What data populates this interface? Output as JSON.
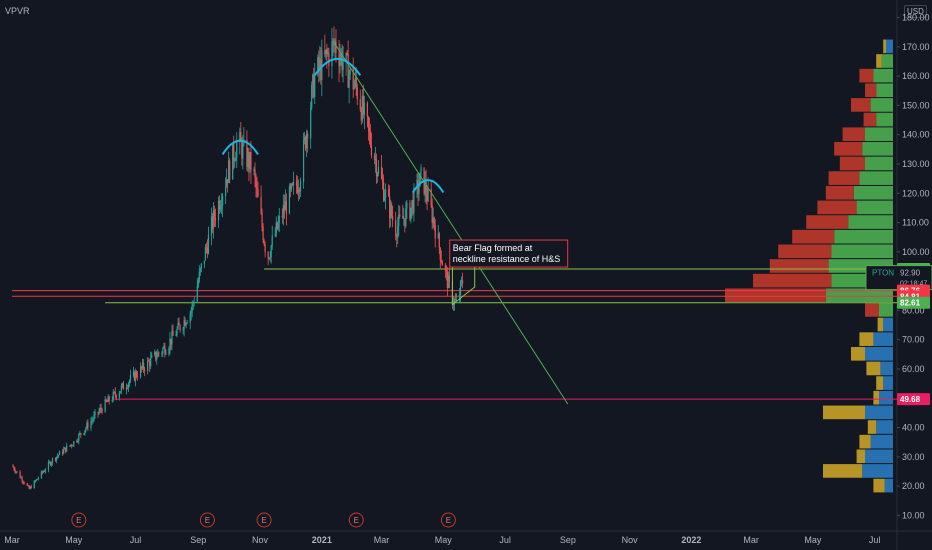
{
  "header": {
    "ticker": "VPVR",
    "currency": "USD"
  },
  "chart_data": {
    "type": "candlestick",
    "ylim": [
      5,
      186
    ],
    "xlim": [
      "2020-03-01",
      "2022-07-31"
    ],
    "y_ticks": [
      10,
      20,
      30,
      40,
      50,
      60,
      70,
      80,
      90,
      100,
      110,
      120,
      130,
      140,
      150,
      160,
      170,
      180
    ],
    "x_ticks": [
      {
        "date": "2020-03-01",
        "label": "Mar"
      },
      {
        "date": "2020-05-01",
        "label": "May"
      },
      {
        "date": "2020-07-01",
        "label": "Jul"
      },
      {
        "date": "2020-09-01",
        "label": "Sep"
      },
      {
        "date": "2020-11-01",
        "label": "Nov"
      },
      {
        "date": "2021-01-01",
        "label": "2021"
      },
      {
        "date": "2021-03-01",
        "label": "Mar"
      },
      {
        "date": "2021-05-01",
        "label": "May"
      },
      {
        "date": "2021-07-01",
        "label": "Jul"
      },
      {
        "date": "2021-09-01",
        "label": "Sep"
      },
      {
        "date": "2021-11-01",
        "label": "Nov"
      },
      {
        "date": "2022-01-01",
        "label": "2022"
      },
      {
        "date": "2022-03-01",
        "label": "Mar"
      },
      {
        "date": "2022-05-01",
        "label": "May"
      },
      {
        "date": "2022-07-01",
        "label": "Jul"
      }
    ],
    "price_path": [
      {
        "date": "2020-03-01",
        "price": 27
      },
      {
        "date": "2020-03-18",
        "price": 19
      },
      {
        "date": "2020-04-10",
        "price": 29
      },
      {
        "date": "2020-05-01",
        "price": 35
      },
      {
        "date": "2020-06-01",
        "price": 48
      },
      {
        "date": "2020-07-01",
        "price": 58
      },
      {
        "date": "2020-08-01",
        "price": 68
      },
      {
        "date": "2020-08-25",
        "price": 80
      },
      {
        "date": "2020-09-15",
        "price": 110
      },
      {
        "date": "2020-10-10",
        "price": 138
      },
      {
        "date": "2020-10-25",
        "price": 128
      },
      {
        "date": "2020-11-08",
        "price": 98
      },
      {
        "date": "2020-11-25",
        "price": 115
      },
      {
        "date": "2020-12-10",
        "price": 125
      },
      {
        "date": "2020-12-25",
        "price": 160
      },
      {
        "date": "2021-01-14",
        "price": 171
      },
      {
        "date": "2021-02-05",
        "price": 155
      },
      {
        "date": "2021-02-28",
        "price": 125
      },
      {
        "date": "2021-03-15",
        "price": 108
      },
      {
        "date": "2021-03-30",
        "price": 115
      },
      {
        "date": "2021-04-10",
        "price": 126
      },
      {
        "date": "2021-04-22",
        "price": 110
      },
      {
        "date": "2021-05-01",
        "price": 95
      },
      {
        "date": "2021-05-10",
        "price": 84
      },
      {
        "date": "2021-05-14",
        "price": 82
      },
      {
        "date": "2021-05-20",
        "price": 90
      }
    ],
    "earnings_markers": [
      {
        "date": "2020-05-06",
        "label": "E"
      },
      {
        "date": "2020-09-10",
        "label": "E"
      },
      {
        "date": "2020-11-05",
        "label": "E"
      },
      {
        "date": "2021-02-04",
        "label": "E"
      },
      {
        "date": "2021-05-06",
        "label": "E"
      }
    ],
    "horizontal_lines": [
      {
        "price": 94.12,
        "color": "#8bc34a",
        "from": "2020-11-05"
      },
      {
        "price": 86.76,
        "color": "#f23645",
        "from": "2020-03-01"
      },
      {
        "price": 84.81,
        "color": "#f23645",
        "from": "2020-03-01"
      },
      {
        "price": 82.61,
        "color": "#8bc34a",
        "from": "2020-06-01"
      },
      {
        "price": 49.68,
        "color": "#e91e63",
        "from": "2020-06-10"
      }
    ],
    "trendline": {
      "from": {
        "date": "2021-01-14",
        "price": 171
      },
      "to": {
        "date": "2021-09-01",
        "price": 48
      },
      "color": "#4caf50"
    },
    "flag": [
      {
        "date": "2021-05-10",
        "price": 95
      },
      {
        "date": "2021-06-01",
        "price": 98
      },
      {
        "date": "2021-06-01",
        "price": 88
      },
      {
        "date": "2021-05-10",
        "price": 82
      }
    ],
    "arcs": [
      {
        "from": "2020-09-25",
        "to": "2020-10-30",
        "price": 136
      },
      {
        "from": "2020-12-25",
        "to": "2021-02-08",
        "price": 163
      },
      {
        "from": "2021-04-01",
        "to": "2021-05-01",
        "price": 123
      }
    ],
    "annotation": {
      "text_lines": [
        "Bear Flag formed at",
        "neckline resistance of H&S"
      ],
      "date": "2021-06-01",
      "price": 103
    },
    "volume_profile": [
      {
        "price": 170,
        "up": 0.05,
        "down": 0.02,
        "color": "blue"
      },
      {
        "price": 165,
        "up": 0.08,
        "down": 0.04,
        "color": "gold"
      },
      {
        "price": 160,
        "up": 0.14,
        "down": 0.1
      },
      {
        "price": 155,
        "up": 0.12,
        "down": 0.08
      },
      {
        "price": 150,
        "up": 0.16,
        "down": 0.14
      },
      {
        "price": 145,
        "up": 0.12,
        "down": 0.09
      },
      {
        "price": 140,
        "up": 0.2,
        "down": 0.16
      },
      {
        "price": 135,
        "up": 0.22,
        "down": 0.2
      },
      {
        "price": 130,
        "up": 0.2,
        "down": 0.18
      },
      {
        "price": 125,
        "up": 0.24,
        "down": 0.22
      },
      {
        "price": 120,
        "up": 0.28,
        "down": 0.2
      },
      {
        "price": 115,
        "up": 0.26,
        "down": 0.28
      },
      {
        "price": 110,
        "up": 0.32,
        "down": 0.3
      },
      {
        "price": 105,
        "up": 0.42,
        "down": 0.3
      },
      {
        "price": 100,
        "up": 0.44,
        "down": 0.38
      },
      {
        "price": 95,
        "up": 0.46,
        "down": 0.42
      },
      {
        "price": 90,
        "up": 0.44,
        "down": 0.56
      },
      {
        "price": 85,
        "up": 0.48,
        "down": 0.72
      },
      {
        "price": 80,
        "up": 0.1,
        "down": 0.1
      },
      {
        "price": 75,
        "up": 0.07,
        "down": 0.04,
        "color": "blue"
      },
      {
        "price": 70,
        "up": 0.14,
        "down": 0.1,
        "color": "blue"
      },
      {
        "price": 65,
        "up": 0.2,
        "down": 0.1,
        "color": "blue"
      },
      {
        "price": 60,
        "up": 0.09,
        "down": 0.1,
        "color": "blue"
      },
      {
        "price": 55,
        "up": 0.07,
        "down": 0.05,
        "color": "blue"
      },
      {
        "price": 50,
        "up": 0.1,
        "down": 0.04,
        "color": "blue"
      },
      {
        "price": 45,
        "up": 0.2,
        "down": 0.3,
        "color": "blue"
      },
      {
        "price": 40,
        "up": 0.12,
        "down": 0.06,
        "color": "blue"
      },
      {
        "price": 35,
        "up": 0.16,
        "down": 0.08,
        "color": "blue"
      },
      {
        "price": 30,
        "up": 0.2,
        "down": 0.06,
        "color": "blue"
      },
      {
        "price": 25,
        "up": 0.22,
        "down": 0.28,
        "color": "blue"
      },
      {
        "price": 20,
        "up": 0.06,
        "down": 0.08,
        "color": "blue"
      }
    ],
    "price_labels": [
      {
        "price": 94.12,
        "text": "94.12",
        "color": "#4caf50"
      },
      {
        "price": 92.9,
        "text": "92.90",
        "color": "#131722",
        "border": "#4caf50",
        "tag": "PTON",
        "sub": "02:18:47"
      },
      {
        "price": 86.76,
        "text": "86.76",
        "color": "#f23645"
      },
      {
        "price": 84.81,
        "text": "84.81",
        "color": "#f23645"
      },
      {
        "price": 82.61,
        "text": "82.61",
        "color": "#4caf50"
      },
      {
        "price": 49.68,
        "text": "49.68",
        "color": "#e91e63"
      }
    ]
  }
}
